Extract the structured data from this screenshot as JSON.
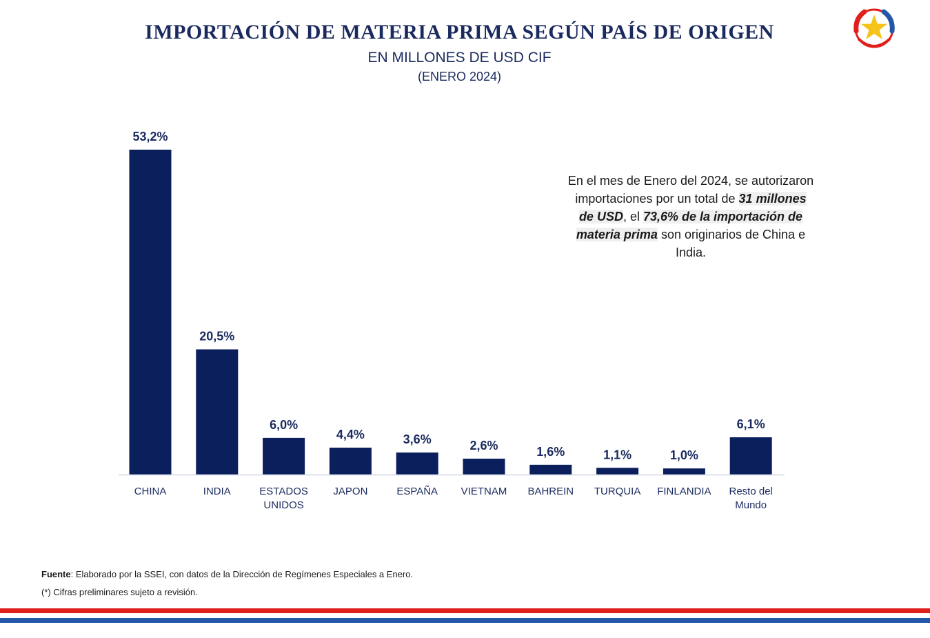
{
  "header": {
    "title": "IMPORTACIÓN DE MATERIA PRIMA SEGÚN PAÍS DE ORIGEN",
    "subtitle": "EN MILLONES DE USD CIF",
    "period": "(ENERO 2024)"
  },
  "annotation": {
    "line1": "En el mes de Enero del 2024, se autorizaron importaciones por un total de ",
    "highlight1": "31 millones de USD",
    "line2": ",  el ",
    "highlight2": "73,6% de la importación de materia prima",
    "line3": " son originarios de China e India."
  },
  "footer": {
    "source_label": "Fuente",
    "source_text": ": Elaborado por la SSEI, con datos de la Dirección de Regímenes Especiales a Enero.",
    "note": "(*) Cifras preliminares sujeto a revisión."
  },
  "colors": {
    "bar": "#0a1f5c",
    "title": "#1a2a5e",
    "stripe_red": "#e0201b",
    "stripe_blue": "#2457a8",
    "axis": "#d0d8e8"
  },
  "chart_data": {
    "type": "bar",
    "categories": [
      "CHINA",
      "INDIA",
      "ESTADOS UNIDOS",
      "JAPON",
      "ESPAÑA",
      "VIETNAM",
      "BAHREIN",
      "TURQUIA",
      "FINLANDIA",
      "Resto del Mundo"
    ],
    "category_lines": [
      [
        "CHINA"
      ],
      [
        "INDIA"
      ],
      [
        "ESTADOS",
        "UNIDOS"
      ],
      [
        "JAPON"
      ],
      [
        "ESPAÑA"
      ],
      [
        "VIETNAM"
      ],
      [
        "BAHREIN"
      ],
      [
        "TURQUIA"
      ],
      [
        "FINLANDIA"
      ],
      [
        "Resto del",
        "Mundo"
      ]
    ],
    "values": [
      53.2,
      20.5,
      6.0,
      4.4,
      3.6,
      2.6,
      1.6,
      1.1,
      1.0,
      6.1
    ],
    "value_labels": [
      "53,2%",
      "20,5%",
      "6,0%",
      "4,4%",
      "3,6%",
      "2,6%",
      "1,6%",
      "1,1%",
      "1,0%",
      "6,1%"
    ],
    "unit": "%",
    "title": "IMPORTACIÓN DE MATERIA PRIMA SEGÚN PAÍS DE ORIGEN",
    "xlabel": "",
    "ylabel": "",
    "ylim": [
      0,
      53.2
    ],
    "grid": false,
    "legend": "none"
  }
}
